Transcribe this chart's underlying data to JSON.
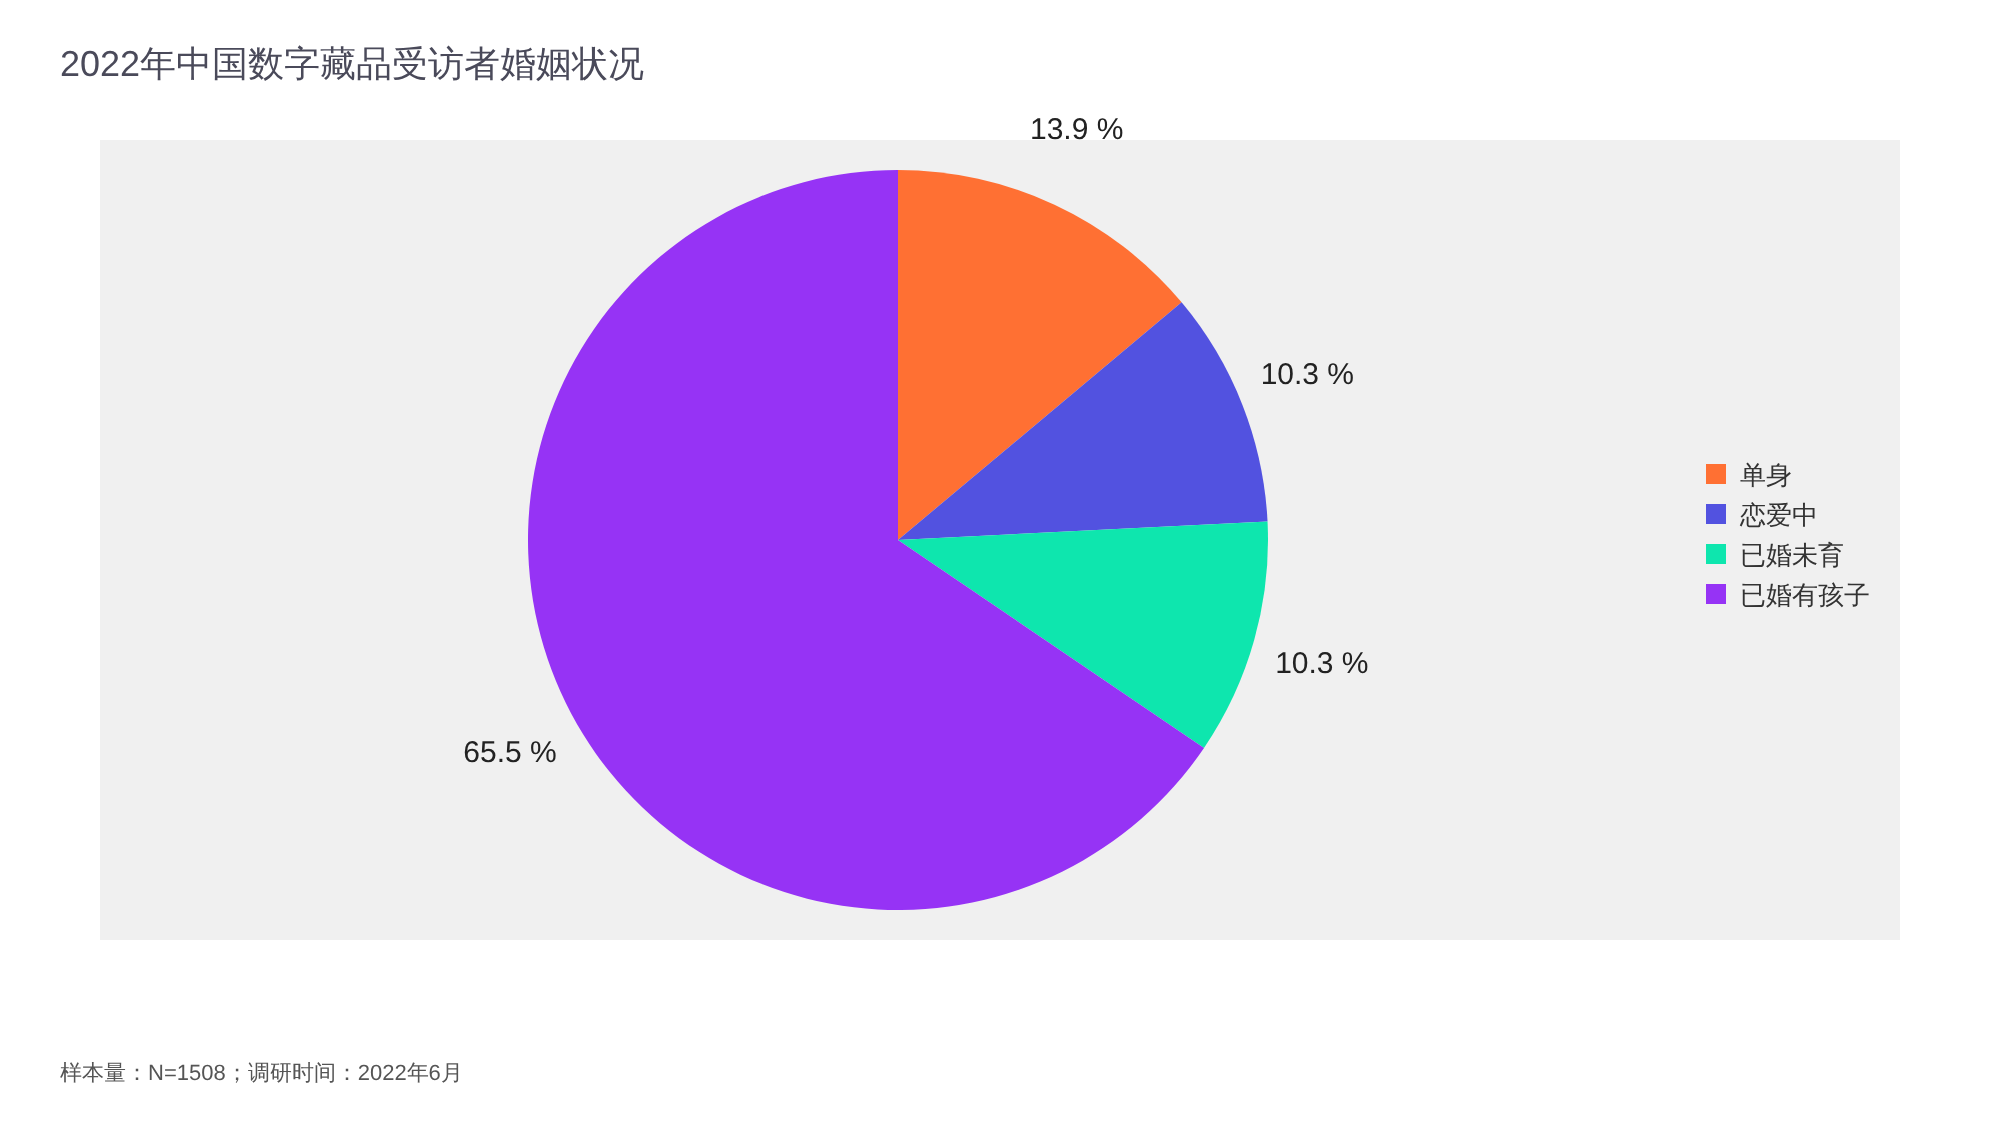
{
  "chart_data": {
    "type": "pie",
    "title": "2022年中国数字藏品受访者婚姻状况",
    "categories": [
      "单身",
      "恋爱中",
      "已婚未育",
      "已婚有孩子"
    ],
    "values": [
      13.9,
      10.3,
      10.3,
      65.5
    ],
    "colors": [
      "#ff7033",
      "#5252e0",
      "#0ee6ae",
      "#9633f5"
    ],
    "value_labels": [
      "13.9 %",
      "10.3 %",
      "10.3 %",
      "65.5 %"
    ],
    "legend": "right",
    "annotations": [
      "样本量：N=1508；调研时间：2022年6月"
    ]
  }
}
